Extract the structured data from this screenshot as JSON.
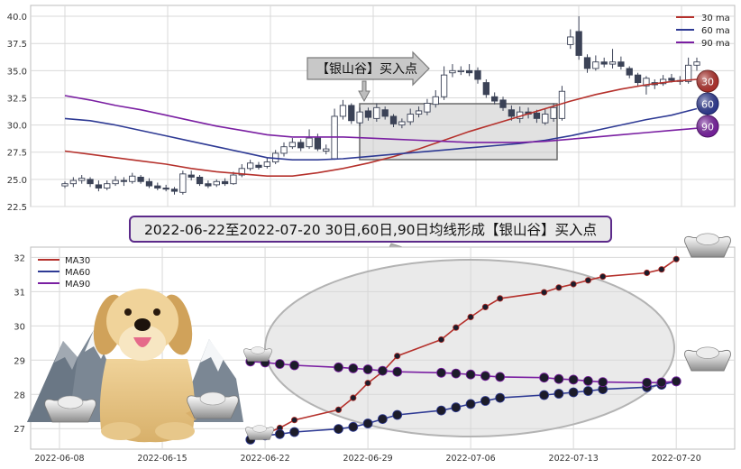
{
  "colors": {
    "ma30": "#b5312c",
    "ma60": "#2e3a94",
    "ma90": "#7a1fa2",
    "grid": "#d9d9d9",
    "frame": "#bdbdbd",
    "up_candle": "#ffffff",
    "down_candle": "#3b4256",
    "banner_border": "#5c2a8a",
    "banner_fill": "#e9e9e9"
  },
  "icons": [
    "golden-retriever-icon",
    "snowy-mountain-icon",
    "silver-ingot-icon"
  ],
  "top_chart": {
    "type": "candlestick",
    "ylim": [
      22.5,
      41
    ],
    "yticks": [
      "22.5",
      "25.0",
      "27.5",
      "30.0",
      "32.5",
      "35.0",
      "37.5",
      "40.0"
    ],
    "legend": [
      {
        "label": "30 ma",
        "color_key": "ma30"
      },
      {
        "label": "60 ma",
        "color_key": "ma60"
      },
      {
        "label": "90 ma",
        "color_key": "ma90"
      }
    ],
    "end_badges": [
      "30",
      "60",
      "90"
    ],
    "callout": "【银山谷】买入点"
  },
  "banner_text": "2022-06-22至2022-07-20 30日,60日,90日均线形成【银山谷】买入点",
  "bottom_chart": {
    "ylim": [
      26.4,
      32.3
    ],
    "yticks": [
      "27",
      "28",
      "29",
      "30",
      "31",
      "32"
    ],
    "xticks": [
      "2022-06-08",
      "2022-06-15",
      "2022-06-22",
      "2022-06-29",
      "2022-07-06",
      "2022-07-13",
      "2022-07-20"
    ],
    "legend": [
      {
        "label": "MA30",
        "color_key": "ma30"
      },
      {
        "label": "MA60",
        "color_key": "ma60"
      },
      {
        "label": "MA90",
        "color_key": "ma90"
      }
    ]
  },
  "chart_data": [
    {
      "type": "candlestick",
      "candles": [
        {
          "o": 24.4,
          "c": 24.6,
          "h": 24.8,
          "l": 24.2
        },
        {
          "o": 24.6,
          "c": 24.9,
          "h": 25.2,
          "l": 24.3
        },
        {
          "o": 24.9,
          "c": 25.1,
          "h": 25.4,
          "l": 24.6
        },
        {
          "o": 25.0,
          "c": 24.6,
          "h": 25.2,
          "l": 24.3
        },
        {
          "o": 24.5,
          "c": 24.2,
          "h": 24.9,
          "l": 23.9
        },
        {
          "o": 24.2,
          "c": 24.6,
          "h": 24.9,
          "l": 24.0
        },
        {
          "o": 24.6,
          "c": 24.9,
          "h": 25.3,
          "l": 24.4
        },
        {
          "o": 24.9,
          "c": 24.8,
          "h": 25.2,
          "l": 24.4
        },
        {
          "o": 24.8,
          "c": 25.3,
          "h": 25.6,
          "l": 24.6
        },
        {
          "o": 25.2,
          "c": 24.8,
          "h": 25.4,
          "l": 24.6
        },
        {
          "o": 24.8,
          "c": 24.4,
          "h": 25.1,
          "l": 24.2
        },
        {
          "o": 24.4,
          "c": 24.2,
          "h": 24.7,
          "l": 24.0
        },
        {
          "o": 24.2,
          "c": 24.1,
          "h": 24.5,
          "l": 23.9
        },
        {
          "o": 24.1,
          "c": 23.9,
          "h": 24.3,
          "l": 23.6
        },
        {
          "o": 23.8,
          "c": 25.5,
          "h": 25.8,
          "l": 23.6
        },
        {
          "o": 25.4,
          "c": 25.2,
          "h": 25.8,
          "l": 24.9
        },
        {
          "o": 25.2,
          "c": 24.6,
          "h": 25.4,
          "l": 24.4
        },
        {
          "o": 24.6,
          "c": 24.4,
          "h": 24.9,
          "l": 24.2
        },
        {
          "o": 24.5,
          "c": 24.8,
          "h": 25.0,
          "l": 24.3
        },
        {
          "o": 24.8,
          "c": 24.6,
          "h": 25.1,
          "l": 24.4
        },
        {
          "o": 24.6,
          "c": 25.4,
          "h": 25.7,
          "l": 24.5
        },
        {
          "o": 25.4,
          "c": 26.0,
          "h": 26.4,
          "l": 25.2
        },
        {
          "o": 26.0,
          "c": 26.5,
          "h": 26.8,
          "l": 25.8
        },
        {
          "o": 26.3,
          "c": 26.1,
          "h": 26.6,
          "l": 25.9
        },
        {
          "o": 26.2,
          "c": 26.6,
          "h": 27.0,
          "l": 26.0
        },
        {
          "o": 26.6,
          "c": 27.4,
          "h": 27.7,
          "l": 26.4
        },
        {
          "o": 27.4,
          "c": 28.0,
          "h": 28.4,
          "l": 27.1
        },
        {
          "o": 28.0,
          "c": 28.4,
          "h": 28.8,
          "l": 27.8
        },
        {
          "o": 28.4,
          "c": 27.9,
          "h": 28.7,
          "l": 27.6
        },
        {
          "o": 28.0,
          "c": 28.8,
          "h": 29.6,
          "l": 27.8
        },
        {
          "o": 28.8,
          "c": 27.8,
          "h": 29.2,
          "l": 27.6
        },
        {
          "o": 27.6,
          "c": 27.8,
          "h": 28.2,
          "l": 27.3
        },
        {
          "o": 26.9,
          "c": 30.8,
          "h": 31.5,
          "l": 26.8
        },
        {
          "o": 30.8,
          "c": 31.8,
          "h": 32.3,
          "l": 30.5
        },
        {
          "o": 31.8,
          "c": 30.4,
          "h": 32.0,
          "l": 30.1
        },
        {
          "o": 30.2,
          "c": 31.2,
          "h": 31.6,
          "l": 29.9
        },
        {
          "o": 31.3,
          "c": 30.7,
          "h": 31.6,
          "l": 30.4
        },
        {
          "o": 30.6,
          "c": 31.6,
          "h": 32.0,
          "l": 30.3
        },
        {
          "o": 31.4,
          "c": 30.8,
          "h": 31.7,
          "l": 30.5
        },
        {
          "o": 30.8,
          "c": 30.1,
          "h": 31.0,
          "l": 29.8
        },
        {
          "o": 30.0,
          "c": 30.3,
          "h": 30.6,
          "l": 29.7
        },
        {
          "o": 30.3,
          "c": 31.0,
          "h": 31.5,
          "l": 30.0
        },
        {
          "o": 31.0,
          "c": 31.3,
          "h": 31.7,
          "l": 30.7
        },
        {
          "o": 31.2,
          "c": 32.0,
          "h": 32.4,
          "l": 30.9
        },
        {
          "o": 31.9,
          "c": 32.6,
          "h": 33.2,
          "l": 31.6
        },
        {
          "o": 32.6,
          "c": 34.6,
          "h": 35.4,
          "l": 32.3
        },
        {
          "o": 34.8,
          "c": 35.0,
          "h": 35.6,
          "l": 34.4
        },
        {
          "o": 34.9,
          "c": 35.0,
          "h": 35.4,
          "l": 34.6
        },
        {
          "o": 35.0,
          "c": 34.8,
          "h": 35.6,
          "l": 34.5
        },
        {
          "o": 35.0,
          "c": 34.2,
          "h": 35.3,
          "l": 33.8
        },
        {
          "o": 33.9,
          "c": 32.8,
          "h": 34.2,
          "l": 32.5
        },
        {
          "o": 32.6,
          "c": 32.2,
          "h": 33.0,
          "l": 31.9
        },
        {
          "o": 32.3,
          "c": 31.6,
          "h": 32.6,
          "l": 31.3
        },
        {
          "o": 31.4,
          "c": 30.8,
          "h": 31.8,
          "l": 30.4
        },
        {
          "o": 30.6,
          "c": 31.2,
          "h": 31.7,
          "l": 30.2
        },
        {
          "o": 31.2,
          "c": 31.0,
          "h": 31.6,
          "l": 30.6
        },
        {
          "o": 31.1,
          "c": 30.6,
          "h": 31.4,
          "l": 30.2
        },
        {
          "o": 30.2,
          "c": 31.0,
          "h": 31.5,
          "l": 30.0
        },
        {
          "o": 30.6,
          "c": 31.6,
          "h": 32.0,
          "l": 30.3
        },
        {
          "o": 30.6,
          "c": 33.1,
          "h": 33.6,
          "l": 30.4
        },
        {
          "o": 37.4,
          "c": 38.1,
          "h": 38.8,
          "l": 37.0
        },
        {
          "o": 38.6,
          "c": 36.4,
          "h": 40.0,
          "l": 36.0
        },
        {
          "o": 36.2,
          "c": 35.2,
          "h": 36.5,
          "l": 34.8
        },
        {
          "o": 35.2,
          "c": 35.8,
          "h": 36.4,
          "l": 35.0
        },
        {
          "o": 35.8,
          "c": 35.6,
          "h": 36.2,
          "l": 35.3
        },
        {
          "o": 35.6,
          "c": 35.8,
          "h": 37.0,
          "l": 35.2
        },
        {
          "o": 35.8,
          "c": 35.4,
          "h": 36.3,
          "l": 35.1
        },
        {
          "o": 35.2,
          "c": 34.6,
          "h": 35.4,
          "l": 34.3
        },
        {
          "o": 34.6,
          "c": 33.9,
          "h": 34.8,
          "l": 33.6
        },
        {
          "o": 33.6,
          "c": 34.3,
          "h": 34.5,
          "l": 32.8
        },
        {
          "o": 33.9,
          "c": 33.7,
          "h": 34.2,
          "l": 33.3
        },
        {
          "o": 33.8,
          "c": 34.2,
          "h": 34.6,
          "l": 33.6
        },
        {
          "o": 34.3,
          "c": 34.1,
          "h": 34.7,
          "l": 33.9
        },
        {
          "o": 34.1,
          "c": 34.0,
          "h": 34.5,
          "l": 33.7
        },
        {
          "o": 34.0,
          "c": 35.5,
          "h": 36.2,
          "l": 33.8
        },
        {
          "o": 35.5,
          "c": 35.8,
          "h": 36.2,
          "l": 35.0
        }
      ],
      "ma30": [
        27.6,
        27.3,
        27.0,
        26.7,
        26.4,
        26.0,
        25.7,
        25.5,
        25.3,
        25.3,
        25.6,
        26.0,
        26.5,
        27.1,
        27.8,
        28.6,
        29.4,
        30.1,
        30.8,
        31.5,
        32.2,
        32.8,
        33.3,
        33.7,
        34.0,
        34.2
      ],
      "ma60": [
        30.6,
        30.4,
        30.0,
        29.5,
        29.0,
        28.5,
        28.0,
        27.5,
        27.0,
        26.8,
        26.8,
        26.9,
        27.1,
        27.3,
        27.5,
        27.7,
        27.9,
        28.1,
        28.3,
        28.6,
        29.0,
        29.5,
        30.0,
        30.5,
        30.9,
        31.5
      ],
      "ma90": [
        32.7,
        32.3,
        31.8,
        31.4,
        30.9,
        30.4,
        29.9,
        29.5,
        29.1,
        28.9,
        28.9,
        28.9,
        28.8,
        28.7,
        28.6,
        28.5,
        28.4,
        28.4,
        28.4,
        28.5,
        28.7,
        28.9,
        29.1,
        29.3,
        29.5,
        29.7
      ]
    },
    {
      "type": "line",
      "x": [
        "2022-06-21",
        "2022-06-22",
        "2022-06-23",
        "2022-06-24",
        "2022-06-27",
        "2022-06-28",
        "2022-06-29",
        "2022-06-30",
        "2022-07-01",
        "2022-07-04",
        "2022-07-05",
        "2022-07-06",
        "2022-07-07",
        "2022-07-08",
        "2022-07-11",
        "2022-07-12",
        "2022-07-13",
        "2022-07-14",
        "2022-07-15",
        "2022-07-18",
        "2022-07-19",
        "2022-07-20"
      ],
      "series": [
        {
          "name": "MA30",
          "values": [
            26.72,
            26.85,
            27.02,
            27.25,
            27.55,
            27.9,
            28.33,
            28.66,
            29.12,
            29.6,
            29.95,
            30.26,
            30.55,
            30.8,
            30.98,
            31.12,
            31.22,
            31.33,
            31.44,
            31.55,
            31.65,
            31.95
          ]
        },
        {
          "name": "MA60",
          "values": [
            26.68,
            26.8,
            26.84,
            26.9,
            26.99,
            27.05,
            27.15,
            27.28,
            27.4,
            27.53,
            27.62,
            27.72,
            27.81,
            27.9,
            27.98,
            28.02,
            28.06,
            28.1,
            28.15,
            28.21,
            28.28,
            28.38
          ]
        },
        {
          "name": "MA90",
          "values": [
            28.96,
            28.93,
            28.89,
            28.85,
            28.79,
            28.76,
            28.73,
            28.69,
            28.66,
            28.63,
            28.61,
            28.58,
            28.54,
            28.51,
            28.49,
            28.45,
            28.43,
            28.39,
            28.36,
            28.34,
            28.35,
            28.38
          ]
        }
      ]
    }
  ]
}
